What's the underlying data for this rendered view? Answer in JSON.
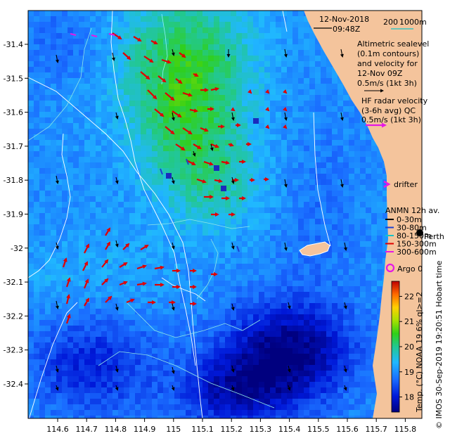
{
  "header": {
    "date": "12-Nov-2018",
    "time": "09:48Z",
    "scale_200": "200",
    "scale_1000": "1000m"
  },
  "info": {
    "altimetric_lines": [
      "Altimetric sealevel",
      "(0.1m contours)",
      "and velocity for",
      "12-Nov 09Z",
      "0.5m/s (1kt 3h)"
    ],
    "hf_lines": [
      "HF radar velocity",
      "(3-6h avg) QC",
      "0.5m/s (1kt 3h)"
    ],
    "drifter": "drifter",
    "anmn_title": "ANMN 12h av.",
    "anmn_items": [
      {
        "label": "0-30m",
        "color": "#000000"
      },
      {
        "label": "30-80m",
        "color": "#1d3fd1"
      },
      {
        "label": "80-150m",
        "color": "#15c3c8"
      },
      {
        "label": "150-300m",
        "color": "#e00000"
      },
      {
        "label": "300-600m",
        "color": "#e617e6"
      }
    ],
    "perth": "Perth",
    "argo": "Argo 0"
  },
  "axes": {
    "x_ticks": [
      "114.6",
      "114.7",
      "114.8",
      "114.9",
      "115",
      "115.1",
      "115.2",
      "115.3",
      "115.4",
      "115.5",
      "115.6",
      "115.7",
      "115.8"
    ],
    "y_ticks": [
      "-31.4",
      "-31.5",
      "-31.6",
      "-31.7",
      "-31.8",
      "-31.9",
      "-32",
      "-32.1",
      "-32.2",
      "-32.3",
      "-32.4"
    ]
  },
  "colorbar": {
    "ticks": [
      "22",
      "21",
      "20",
      "19",
      "18"
    ],
    "label": "Temp. (°C) NOAA 19 6% ql>=2",
    "vmin": 17.4,
    "vmax": 22.6
  },
  "credit": "© IMOS 30-Sep-2019 19:20:51 Hobart time",
  "colors": {
    "land": "#f4c49c",
    "alt_arrow": "#e00000",
    "hf_arrow": "#e617e6",
    "argo": "#e617e6",
    "contour": "#ffffff"
  }
}
